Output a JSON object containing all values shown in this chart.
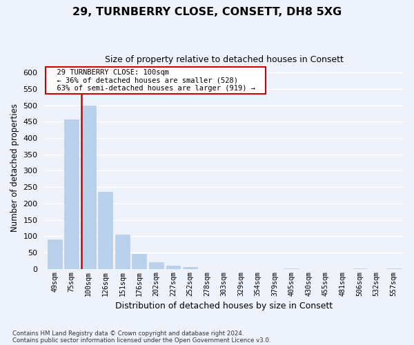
{
  "title": "29, TURNBERRY CLOSE, CONSETT, DH8 5XG",
  "subtitle": "Size of property relative to detached houses in Consett",
  "xlabel": "Distribution of detached houses by size in Consett",
  "ylabel": "Number of detached properties",
  "bar_labels": [
    "49sqm",
    "75sqm",
    "100sqm",
    "126sqm",
    "151sqm",
    "176sqm",
    "202sqm",
    "227sqm",
    "252sqm",
    "278sqm",
    "303sqm",
    "329sqm",
    "354sqm",
    "379sqm",
    "405sqm",
    "430sqm",
    "455sqm",
    "481sqm",
    "506sqm",
    "532sqm",
    "557sqm"
  ],
  "bar_values": [
    90,
    457,
    500,
    236,
    105,
    46,
    21,
    10,
    7,
    0,
    0,
    0,
    0,
    0,
    2,
    0,
    0,
    0,
    2,
    0,
    2
  ],
  "highlight_index": 2,
  "bar_color": "#b8d0ea",
  "highlight_color": "#cc0000",
  "ylim": [
    0,
    620
  ],
  "yticks": [
    0,
    50,
    100,
    150,
    200,
    250,
    300,
    350,
    400,
    450,
    500,
    550,
    600
  ],
  "annotation_title": "29 TURNBERRY CLOSE: 100sqm",
  "annotation_line1": "← 36% of detached houses are smaller (528)",
  "annotation_line2": "63% of semi-detached houses are larger (919) →",
  "footnote1": "Contains HM Land Registry data © Crown copyright and database right 2024.",
  "footnote2": "Contains public sector information licensed under the Open Government Licence v3.0.",
  "background_color": "#eef2fa",
  "grid_color": "#ffffff"
}
